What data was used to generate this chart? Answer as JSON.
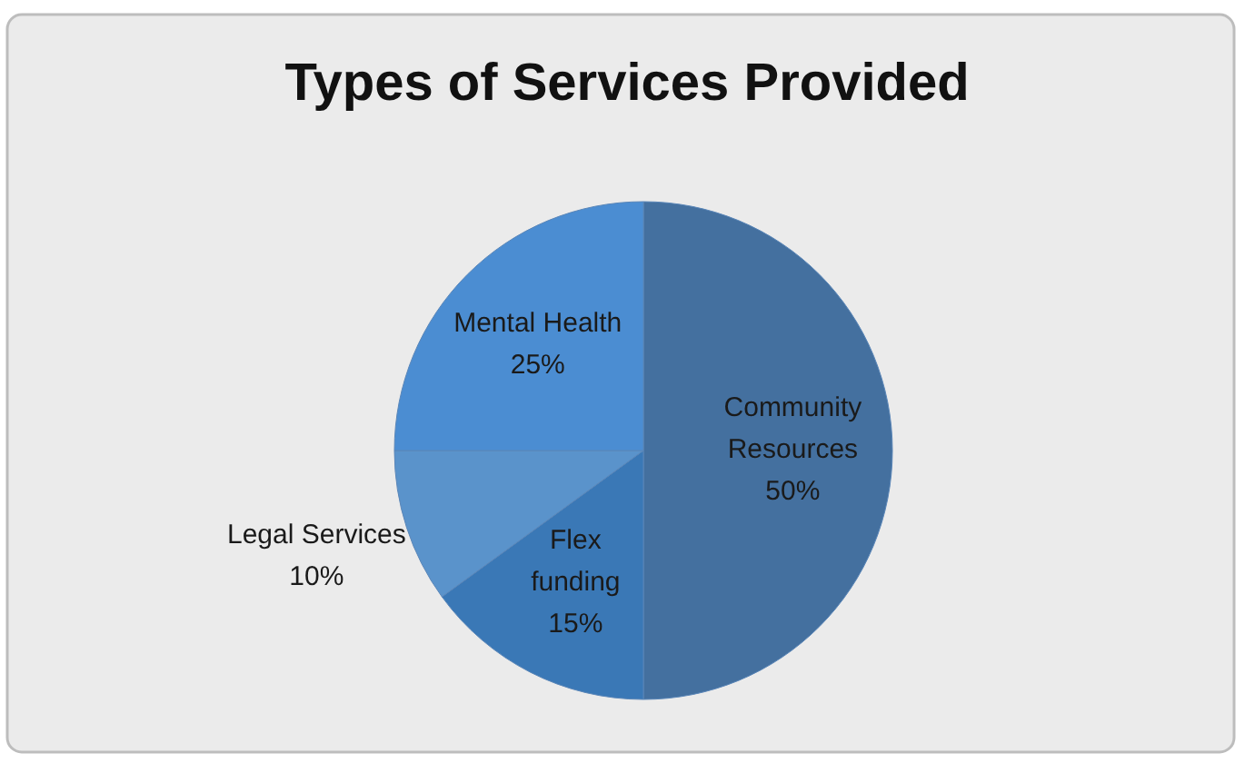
{
  "chart_data": {
    "type": "pie",
    "title": "Types of Services Provided",
    "categories": [
      "Community Resources",
      "Flex funding",
      "Legal Services",
      "Mental Health"
    ],
    "values": [
      50,
      15,
      10,
      25
    ],
    "value_labels": [
      "50%",
      "15%",
      "10%",
      "25%"
    ],
    "colors": [
      "#44709f",
      "#3a78b6",
      "#5a93cb",
      "#4b8dd2"
    ]
  }
}
